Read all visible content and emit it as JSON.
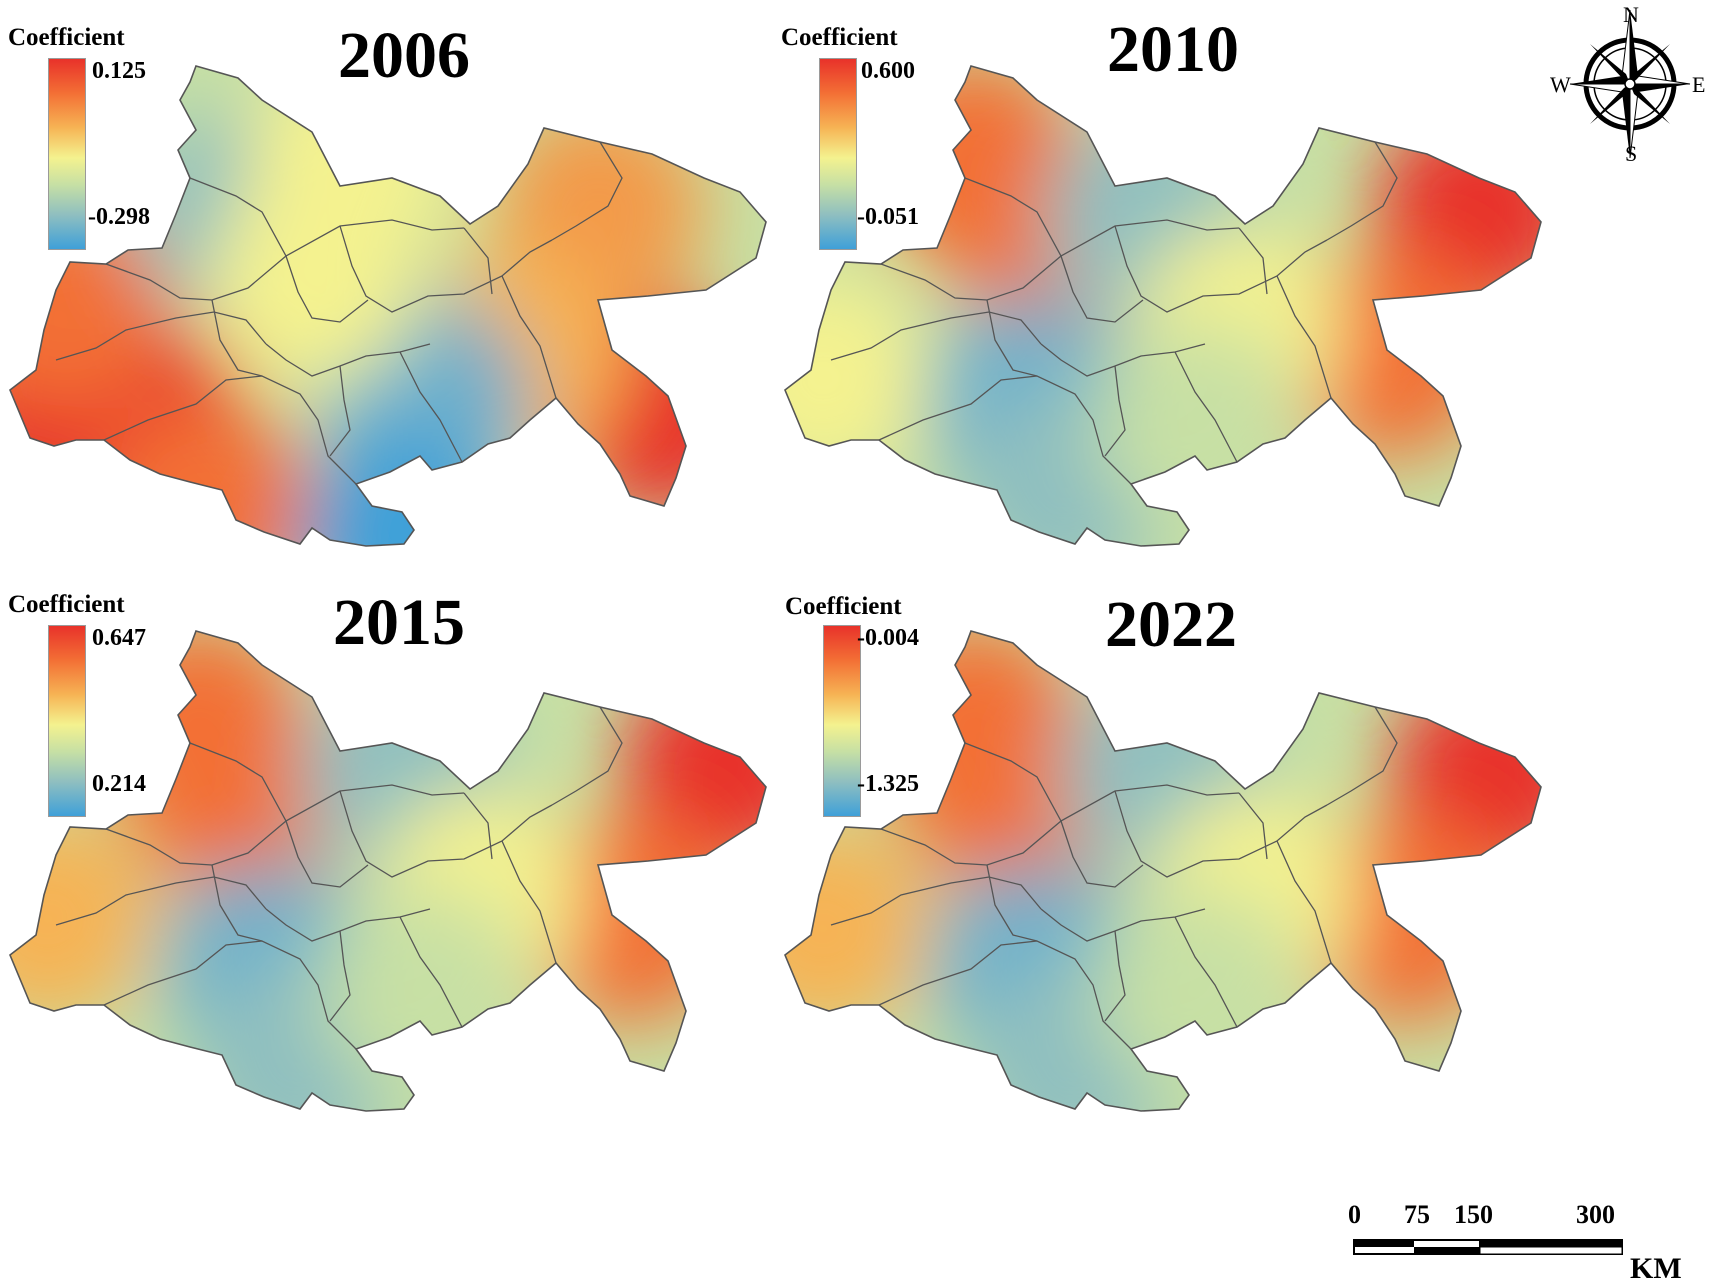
{
  "legend_title": "Coefficient",
  "panels": [
    {
      "year": "2006",
      "legend_max": "0.125",
      "legend_min": "-0.298",
      "hotspots": [
        {
          "u": 0.05,
          "v": 0.72,
          "c": "#e8322a"
        },
        {
          "u": 0.18,
          "v": 0.75,
          "c": "#e8322a"
        },
        {
          "u": 0.07,
          "v": 0.5,
          "c": "#f36f35"
        },
        {
          "u": 0.26,
          "v": 0.92,
          "c": "#f36f35"
        },
        {
          "u": 0.78,
          "v": 0.3,
          "c": "#f39a48"
        },
        {
          "u": 0.86,
          "v": 0.72,
          "c": "#e8322a"
        },
        {
          "u": 0.68,
          "v": 0.6,
          "c": "#f6b354"
        },
        {
          "u": 0.3,
          "v": 0.31,
          "c": "#8fbfc0"
        },
        {
          "u": 0.55,
          "v": 0.7,
          "c": "#6db0cc"
        },
        {
          "u": 0.52,
          "v": 0.98,
          "c": "#3fa0d8"
        },
        {
          "u": 0.45,
          "v": 0.2,
          "c": "#f4f28f"
        },
        {
          "u": 0.4,
          "v": 0.45,
          "c": "#f4f28f"
        }
      ]
    },
    {
      "year": "2010",
      "legend_max": "0.600",
      "legend_min": "-0.051",
      "hotspots": [
        {
          "u": 0.25,
          "v": 0.2,
          "c": "#f36f35"
        },
        {
          "u": 0.35,
          "v": 0.35,
          "c": "#f36f35"
        },
        {
          "u": 0.48,
          "v": 0.32,
          "c": "#8fbfc0"
        },
        {
          "u": 0.32,
          "v": 0.7,
          "c": "#6db0cc"
        },
        {
          "u": 0.37,
          "v": 0.88,
          "c": "#8fbfc0"
        },
        {
          "u": 0.92,
          "v": 0.3,
          "c": "#e8322a"
        },
        {
          "u": 0.8,
          "v": 0.6,
          "c": "#f36f35"
        },
        {
          "u": 0.05,
          "v": 0.65,
          "c": "#f4f28f"
        },
        {
          "u": 0.6,
          "v": 0.55,
          "c": "#f4f28f"
        },
        {
          "u": 0.55,
          "v": 0.75,
          "c": "#c7e0a4"
        }
      ]
    },
    {
      "year": "2015",
      "legend_max": "0.647",
      "legend_min": "0.214",
      "hotspots": [
        {
          "u": 0.25,
          "v": 0.2,
          "c": "#f36f35"
        },
        {
          "u": 0.3,
          "v": 0.35,
          "c": "#f36f35"
        },
        {
          "u": 0.52,
          "v": 0.3,
          "c": "#8fbfc0"
        },
        {
          "u": 0.34,
          "v": 0.7,
          "c": "#6db0cc"
        },
        {
          "u": 0.38,
          "v": 0.9,
          "c": "#8fbfc0"
        },
        {
          "u": 0.95,
          "v": 0.28,
          "c": "#e8322a"
        },
        {
          "u": 0.82,
          "v": 0.6,
          "c": "#f36f35"
        },
        {
          "u": 0.05,
          "v": 0.6,
          "c": "#f6b354"
        },
        {
          "u": 0.62,
          "v": 0.55,
          "c": "#f4f28f"
        },
        {
          "u": 0.55,
          "v": 0.75,
          "c": "#c7e0a4"
        }
      ]
    },
    {
      "year": "2022",
      "legend_max": "-0.004",
      "legend_min": "-1.325",
      "hotspots": [
        {
          "u": 0.25,
          "v": 0.2,
          "c": "#f36f35"
        },
        {
          "u": 0.3,
          "v": 0.35,
          "c": "#f36f35"
        },
        {
          "u": 0.5,
          "v": 0.3,
          "c": "#8fbfc0"
        },
        {
          "u": 0.33,
          "v": 0.7,
          "c": "#6db0cc"
        },
        {
          "u": 0.38,
          "v": 0.9,
          "c": "#8fbfc0"
        },
        {
          "u": 0.94,
          "v": 0.3,
          "c": "#e8322a"
        },
        {
          "u": 0.82,
          "v": 0.6,
          "c": "#f36f35"
        },
        {
          "u": 0.05,
          "v": 0.62,
          "c": "#f6b354"
        },
        {
          "u": 0.62,
          "v": 0.55,
          "c": "#f4f28f"
        },
        {
          "u": 0.55,
          "v": 0.75,
          "c": "#c7e0a4"
        }
      ]
    }
  ],
  "compass": {
    "n": "N",
    "s": "S",
    "e": "E",
    "w": "W"
  },
  "scalebar": {
    "ticks": [
      "0",
      "75",
      "150",
      "300"
    ],
    "unit": "KM"
  },
  "icons": {
    "compass": "compass-rose-icon",
    "scale": "scale-bar"
  }
}
